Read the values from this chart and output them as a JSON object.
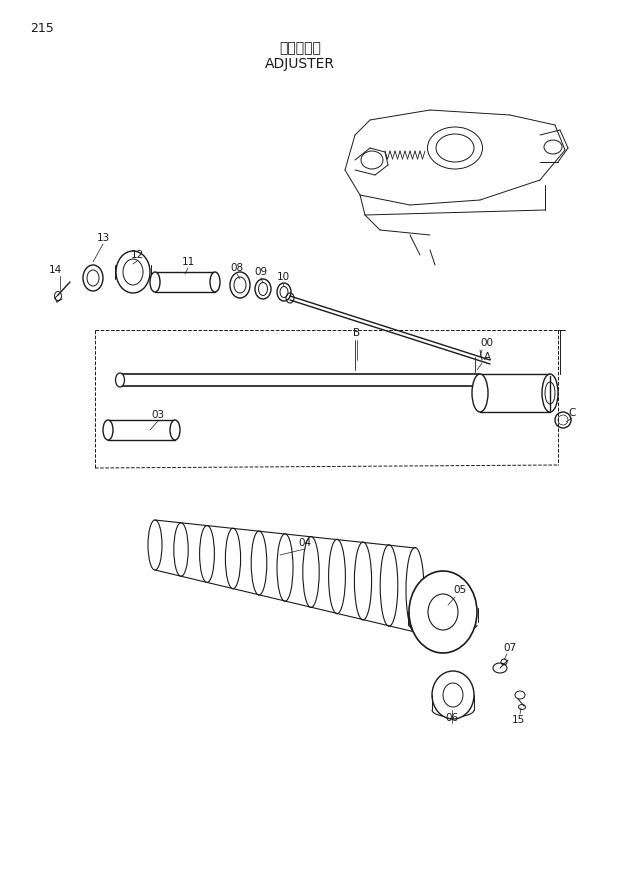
{
  "page_number": "215",
  "title_japanese": "アジャスタ",
  "title_english": "ADJUSTER",
  "background_color": "#ffffff",
  "line_color": "#1a1a1a",
  "text_color": "#1a1a1a"
}
